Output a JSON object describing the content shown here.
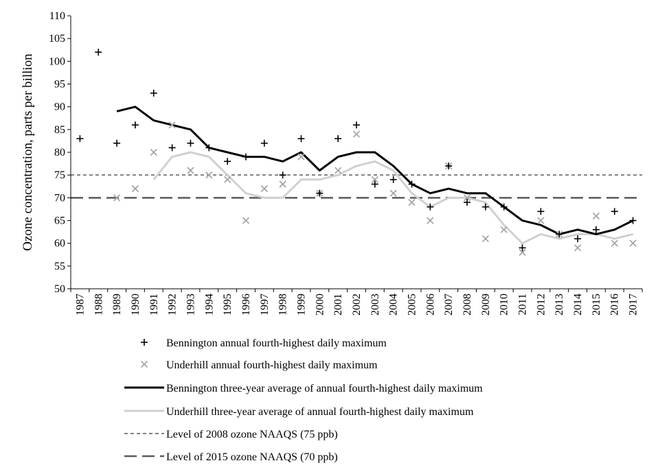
{
  "chart_data": {
    "type": "line",
    "title": "",
    "xlabel": "",
    "ylabel": "Ozone concentration, parts per billion",
    "ylim": [
      50,
      110
    ],
    "ytick_step": 5,
    "x": [
      1987,
      1988,
      1989,
      1990,
      1991,
      1992,
      1993,
      1994,
      1995,
      1996,
      1997,
      1998,
      1999,
      2000,
      2001,
      2002,
      2003,
      2004,
      2005,
      2006,
      2007,
      2008,
      2009,
      2010,
      2011,
      2012,
      2013,
      2014,
      2015,
      2016,
      2017
    ],
    "series": [
      {
        "name": "Bennington annual fourth-highest daily maximum",
        "kind": "scatter",
        "marker": "plus",
        "color": "#000000",
        "values": [
          83,
          102,
          82,
          86,
          93,
          81,
          82,
          81,
          78,
          79,
          82,
          75,
          83,
          71,
          83,
          86,
          73,
          74,
          73,
          68,
          77,
          69,
          68,
          68,
          59,
          67,
          62,
          61,
          63,
          67,
          65
        ]
      },
      {
        "name": "Underhill annual fourth-highest daily maximum",
        "kind": "scatter",
        "marker": "cross",
        "color": "#a6a6a6",
        "values": [
          null,
          null,
          70,
          72,
          80,
          86,
          76,
          75,
          74,
          65,
          72,
          73,
          79,
          71,
          76,
          84,
          74,
          71,
          69,
          65,
          77,
          70,
          61,
          63,
          58,
          65,
          62,
          59,
          66,
          60,
          60
        ]
      },
      {
        "name": "Bennington three-year average of annual fourth-highest daily maximum",
        "kind": "line",
        "color": "#000000",
        "values": [
          null,
          null,
          89,
          90,
          87,
          86,
          85,
          81,
          80,
          79,
          79,
          78,
          80,
          76,
          79,
          80,
          80,
          77,
          73,
          71,
          72,
          71,
          71,
          68,
          65,
          64,
          62,
          63,
          62,
          63,
          65
        ]
      },
      {
        "name": "Underhill three-year average of annual fourth-highest daily maximum",
        "kind": "line",
        "color": "#d0d0d0",
        "values": [
          null,
          null,
          null,
          null,
          74,
          79,
          80,
          79,
          75,
          71,
          70,
          70,
          74,
          74,
          75,
          77,
          78,
          76,
          71,
          68,
          70,
          70,
          69,
          64,
          60,
          62,
          61,
          62,
          62,
          61,
          62
        ]
      }
    ],
    "reference_lines": [
      {
        "name": "Level of 2008 ozone NAAQS (75 ppb)",
        "value": 75,
        "color": "#808080",
        "style": "short-dash"
      },
      {
        "name": "Level of 2015 ozone NAAQS (70 ppb)",
        "value": 70,
        "color": "#595959",
        "style": "long-dash"
      }
    ],
    "legend": {
      "position": "bottom",
      "entries": [
        {
          "label": "Bennington annual fourth-highest daily maximum",
          "marker": "plus",
          "color": "#000000"
        },
        {
          "label": "Underhill annual fourth-highest daily maximum",
          "marker": "cross",
          "color": "#a6a6a6"
        },
        {
          "label": "Bennington three-year average of annual fourth-highest daily maximum",
          "marker": "line",
          "color": "#000000"
        },
        {
          "label": "Underhill three-year average of annual fourth-highest daily maximum",
          "marker": "line",
          "color": "#d0d0d0"
        },
        {
          "label": "Level of 2008 ozone NAAQS (75 ppb)",
          "marker": "short-dash",
          "color": "#808080"
        },
        {
          "label": "Level of 2015 ozone NAAQS (70 ppb)",
          "marker": "long-dash",
          "color": "#595959"
        }
      ]
    },
    "grid": false
  }
}
